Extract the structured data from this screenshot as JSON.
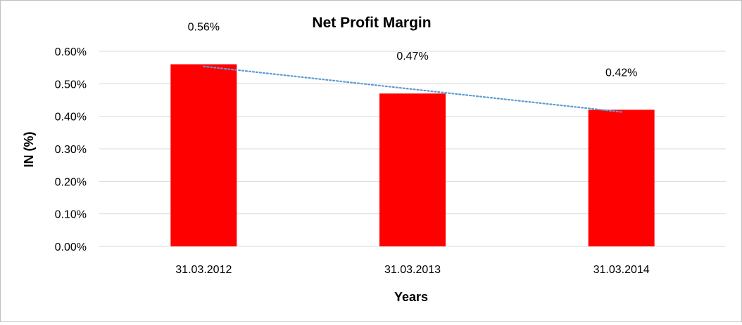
{
  "chart_data": {
    "type": "bar",
    "title": "Net Profit Margin",
    "xlabel": "Years",
    "ylabel": "IN (%)",
    "categories": [
      "31.03.2012",
      "31.03.2013",
      "31.03.2014"
    ],
    "values": [
      0.56,
      0.47,
      0.42
    ],
    "data_labels": [
      "0.56%",
      "0.47%",
      "0.42%"
    ],
    "ylim": [
      0,
      0.6
    ],
    "yticks": [
      0,
      0.1,
      0.2,
      0.3,
      0.4,
      0.5,
      0.6
    ],
    "ytick_labels": [
      "0.00%",
      "0.10%",
      "0.20%",
      "0.30%",
      "0.40%",
      "0.50%",
      "0.60%"
    ],
    "grid": true,
    "trendline": "linear",
    "colors": {
      "bar": "#ff0000",
      "trendline": "#5b9bd5",
      "grid": "#d9d9d9"
    }
  }
}
